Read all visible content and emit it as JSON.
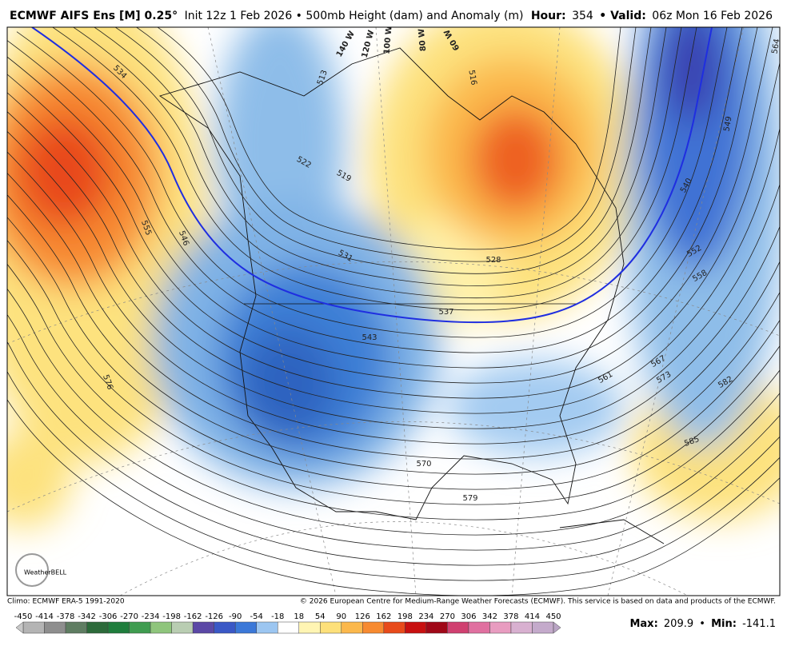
{
  "header": {
    "model": "ECMWF AIFS Ens [M] 0.25°",
    "description": "Init 12z 1 Feb 2026 • 500mb Height (dam) and Anomaly (m)",
    "hour_label": "Hour:",
    "hour": "354",
    "valid_label": "• Valid:",
    "valid": "06z Mon 16 Feb 2026"
  },
  "map": {
    "contour_labels": [
      534,
      555,
      546,
      576,
      513,
      522,
      519,
      531,
      516,
      528,
      537,
      543,
      540,
      549,
      552,
      558,
      564,
      567,
      573,
      561,
      582,
      585,
      570,
      579
    ],
    "longitude_labels": [
      "140 W",
      "120 W",
      "100 W",
      "80 W",
      "60 W"
    ],
    "logo": "WeatherBELL"
  },
  "footer": {
    "climo": "Climo: ECMWF ERA-5 1991-2020",
    "copyright": "© 2026 European Centre for Medium-Range Weather Forecasts (ECMWF). This service is based on data and products of the ECMWF."
  },
  "colorbar": {
    "ticks": [
      -450,
      -414,
      -378,
      -342,
      -306,
      -270,
      -234,
      -198,
      -162,
      -126,
      -90,
      -54,
      -18,
      18,
      54,
      90,
      126,
      162,
      198,
      234,
      270,
      306,
      342,
      378,
      414,
      450
    ],
    "colors": [
      "#b4b4b4",
      "#8e8e8e",
      "#5f7d62",
      "#2c6a3a",
      "#1f7d3c",
      "#3f9c50",
      "#8fc57c",
      "#b9cdb2",
      "#5b48a6",
      "#3a58c6",
      "#3b78d8",
      "#9cc6f1",
      "#ffffff",
      "#fff5b3",
      "#fde07a",
      "#fbb84c",
      "#f78a30",
      "#e84a1a",
      "#c81010",
      "#a00818",
      "#d04070",
      "#e070a0",
      "#e89cc0",
      "#d8b0d0",
      "#c4aacb"
    ]
  },
  "stats": {
    "max_label": "Max:",
    "max": 209.9,
    "separator": "•",
    "min_label": "Min:",
    "min": -141.1
  }
}
